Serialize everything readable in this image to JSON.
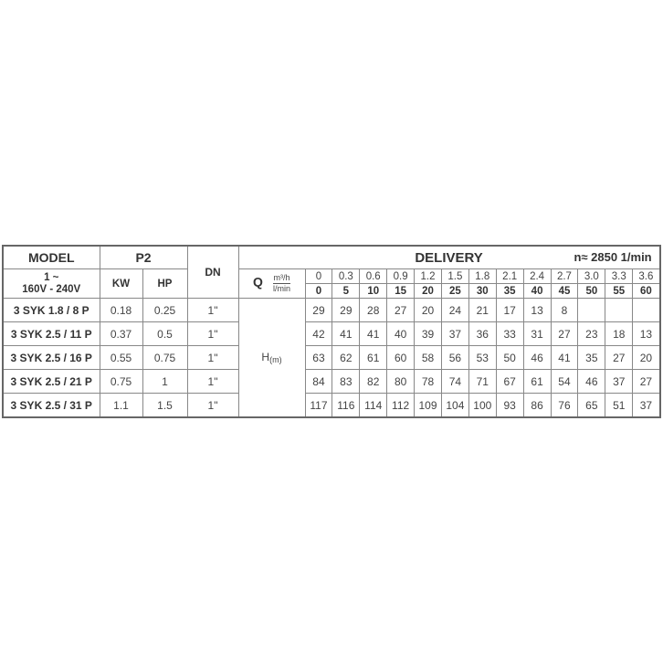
{
  "header": {
    "model": "MODEL",
    "p2": "P2",
    "dn": "DN",
    "delivery": "DELIVERY",
    "speed": "n≈ 2850 1/min",
    "voltage_line1": "1 ~",
    "voltage_line2": "160V - 240V",
    "kw": "KW",
    "hp": "HP",
    "q": "Q",
    "q_unit_top": "m³/h",
    "q_unit_bottom": "l/min",
    "h": "H",
    "h_unit": "(m)"
  },
  "flow_m3h": [
    "0",
    "0.3",
    "0.6",
    "0.9",
    "1.2",
    "1.5",
    "1.8",
    "2.1",
    "2.4",
    "2.7",
    "3.0",
    "3.3",
    "3.6"
  ],
  "flow_lmin": [
    "0",
    "5",
    "10",
    "15",
    "20",
    "25",
    "30",
    "35",
    "40",
    "45",
    "50",
    "55",
    "60"
  ],
  "rows": [
    {
      "model": "3 SYK 1.8 / 8 P",
      "kw": "0.18",
      "hp": "0.25",
      "dn": "1\"",
      "head": [
        "29",
        "29",
        "28",
        "27",
        "20",
        "24",
        "21",
        "17",
        "13",
        "8",
        "",
        "",
        ""
      ]
    },
    {
      "model": "3 SYK 2.5 / 11 P",
      "kw": "0.37",
      "hp": "0.5",
      "dn": "1\"",
      "head": [
        "42",
        "41",
        "41",
        "40",
        "39",
        "37",
        "36",
        "33",
        "31",
        "27",
        "23",
        "18",
        "13"
      ]
    },
    {
      "model": "3 SYK 2.5 / 16 P",
      "kw": "0.55",
      "hp": "0.75",
      "dn": "1\"",
      "head": [
        "63",
        "62",
        "61",
        "60",
        "58",
        "56",
        "53",
        "50",
        "46",
        "41",
        "35",
        "27",
        "20"
      ]
    },
    {
      "model": "3 SYK 2.5 / 21 P",
      "kw": "0.75",
      "hp": "1",
      "dn": "1\"",
      "head": [
        "84",
        "83",
        "82",
        "80",
        "78",
        "74",
        "71",
        "67",
        "61",
        "54",
        "46",
        "37",
        "27"
      ]
    },
    {
      "model": "3 SYK 2.5 / 31 P",
      "kw": "1.1",
      "hp": "1.5",
      "dn": "1\"",
      "head": [
        "117",
        "116",
        "114",
        "112",
        "109",
        "104",
        "100",
        "93",
        "86",
        "76",
        "65",
        "51",
        "37"
      ]
    }
  ]
}
